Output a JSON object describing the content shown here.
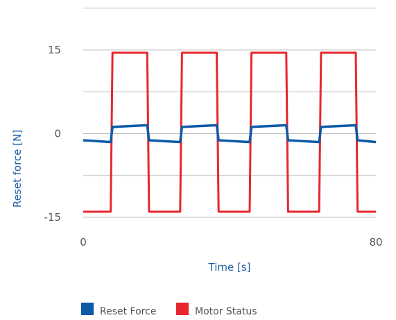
{
  "chart_data": {
    "type": "line",
    "title": "",
    "xlabel": "Time [s]",
    "ylabel": "Reset force [N]",
    "xlim": [
      0,
      80
    ],
    "ylim": [
      -15,
      15
    ],
    "x_ticks": [
      {
        "value": 0,
        "label": "0"
      },
      {
        "value": 80,
        "label": "80"
      }
    ],
    "y_ticks": [
      {
        "value": 15,
        "label": "15"
      },
      {
        "value": 0,
        "label": "0"
      },
      {
        "value": -15,
        "label": "-15"
      }
    ],
    "grid": true,
    "legend_position": "bottom-left",
    "axis_label_color": "#1f5fa6",
    "series": [
      {
        "name": "Reset Force",
        "color": "#0d5aa7",
        "x": [
          0,
          7.5,
          8,
          17.5,
          18,
          26.5,
          27,
          36.5,
          37,
          45.5,
          46,
          55.5,
          56,
          64.5,
          65,
          74.5,
          75,
          80
        ],
        "y": [
          -1.2,
          -1.5,
          1.2,
          1.5,
          -1.2,
          -1.5,
          1.2,
          1.5,
          -1.2,
          -1.5,
          1.2,
          1.5,
          -1.2,
          -1.5,
          1.2,
          1.5,
          -1.2,
          -1.5
        ]
      },
      {
        "name": "Motor Status",
        "color": "#e8262d",
        "x": [
          0,
          7.5,
          8,
          17.5,
          18,
          26.5,
          27,
          36.5,
          37,
          45.5,
          46,
          55.5,
          56,
          64.5,
          65,
          74.5,
          75,
          80
        ],
        "y": [
          -14,
          -14,
          14.5,
          14.5,
          -14,
          -14,
          14.5,
          14.5,
          -14,
          -14,
          14.5,
          14.5,
          -14,
          -14,
          14.5,
          14.5,
          -14,
          -14
        ]
      }
    ]
  }
}
